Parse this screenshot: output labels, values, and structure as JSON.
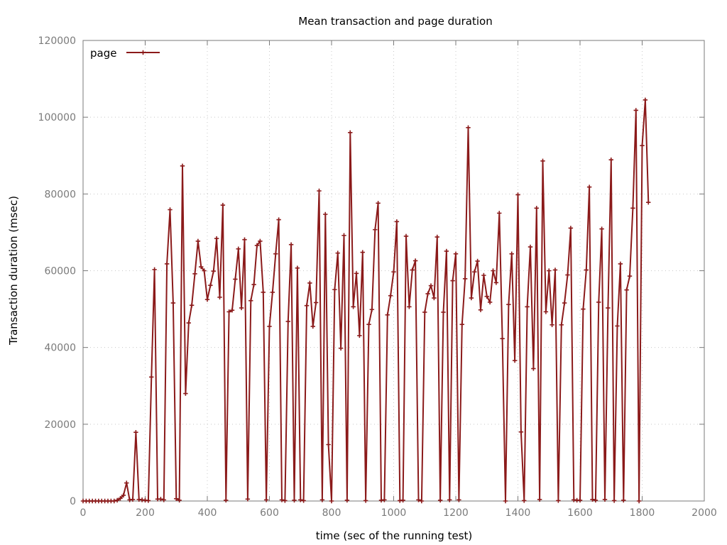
{
  "chart_data": {
    "type": "line",
    "title": "Mean transaction and page duration",
    "xlabel": "time (sec of the running test)",
    "ylabel": "Transaction duration (msec)",
    "xlim": [
      0,
      2000
    ],
    "ylim": [
      0,
      120000
    ],
    "xticks": [
      0,
      200,
      400,
      600,
      800,
      1000,
      1200,
      1400,
      1600,
      1800,
      2000
    ],
    "yticks": [
      0,
      20000,
      40000,
      60000,
      80000,
      100000,
      120000
    ],
    "grid": true,
    "legend_position": "top-left",
    "colors": {
      "series": "#8b1a1a"
    },
    "series": [
      {
        "name": "page",
        "x": [
          0,
          10,
          20,
          30,
          40,
          50,
          60,
          70,
          80,
          90,
          100,
          110,
          120,
          130,
          140,
          150,
          160,
          170,
          180,
          190,
          200,
          210,
          220,
          230,
          240,
          250,
          260,
          270,
          280,
          290,
          300,
          310,
          320,
          330,
          340,
          350,
          360,
          370,
          380,
          390,
          400,
          410,
          420,
          430,
          440,
          450,
          460,
          470,
          480,
          490,
          500,
          510,
          520,
          530,
          540,
          550,
          560,
          570,
          580,
          590,
          600,
          610,
          620,
          630,
          640,
          650,
          660,
          670,
          680,
          690,
          700,
          710,
          720,
          730,
          740,
          750,
          760,
          770,
          780,
          790,
          800,
          810,
          820,
          830,
          840,
          850,
          860,
          870,
          880,
          890,
          900,
          910,
          920,
          930,
          940,
          950,
          960,
          970,
          980,
          990,
          1000,
          1010,
          1020,
          1030,
          1040,
          1050,
          1060,
          1070,
          1080,
          1090,
          1100,
          1110,
          1120,
          1130,
          1140,
          1150,
          1160,
          1170,
          1180,
          1190,
          1200,
          1210,
          1220,
          1230,
          1240,
          1250,
          1260,
          1270,
          1280,
          1290,
          1300,
          1310,
          1320,
          1330,
          1340,
          1350,
          1360,
          1370,
          1380,
          1390,
          1400,
          1410,
          1420,
          1430,
          1440,
          1450,
          1460,
          1470,
          1480,
          1490,
          1500,
          1510,
          1520,
          1530,
          1540,
          1550,
          1560,
          1570,
          1580,
          1590,
          1600,
          1610,
          1620,
          1630,
          1640,
          1650,
          1660,
          1670,
          1680,
          1690,
          1700,
          1710,
          1720,
          1730,
          1740,
          1750,
          1760,
          1770,
          1780,
          1790,
          1800,
          1810,
          1820
        ],
        "y": [
          0,
          0,
          0,
          0,
          0,
          0,
          0,
          0,
          0,
          0,
          0,
          200,
          700,
          1500,
          4700,
          300,
          400,
          17900,
          400,
          300,
          200,
          100,
          32300,
          60300,
          500,
          500,
          300,
          61800,
          75900,
          51600,
          600,
          200,
          87300,
          28000,
          46400,
          51000,
          59200,
          67700,
          61000,
          60000,
          52500,
          56200,
          59900,
          68400,
          53100,
          77100,
          200,
          49300,
          49700,
          57800,
          65700,
          50300,
          68100,
          500,
          52200,
          56400,
          66600,
          67700,
          54400,
          300,
          45500,
          54400,
          64400,
          73300,
          300,
          100,
          46800,
          66800,
          200,
          60700,
          300,
          100,
          50900,
          56800,
          45500,
          51700,
          80800,
          300,
          74700,
          14700,
          0,
          55100,
          64600,
          39800,
          69200,
          200,
          96000,
          50600,
          59300,
          43100,
          64800,
          100,
          46000,
          49900,
          70700,
          77600,
          200,
          300,
          48500,
          53500,
          59700,
          72800,
          100,
          200,
          69000,
          50600,
          60200,
          62600,
          300,
          0,
          49200,
          54000,
          56100,
          52900,
          68800,
          200,
          49200,
          65100,
          300,
          57400,
          64400,
          300,
          46000,
          57900,
          97300,
          52900,
          59700,
          62500,
          49800,
          58800,
          53300,
          51800,
          60000,
          56900,
          75000,
          42300,
          0,
          51200,
          64400,
          36600,
          79800,
          18000,
          100,
          50600,
          66200,
          34500,
          76300,
          400,
          88600,
          49300,
          60000,
          45900,
          60200,
          100,
          45900,
          51600,
          58900,
          71100,
          300,
          200,
          200,
          50000,
          60200,
          81800,
          400,
          200,
          51800,
          70900,
          400,
          50300,
          88900,
          100,
          45600,
          61800,
          200,
          55000,
          58600,
          76300,
          101800,
          0,
          92600,
          104500,
          77800
        ]
      }
    ]
  }
}
